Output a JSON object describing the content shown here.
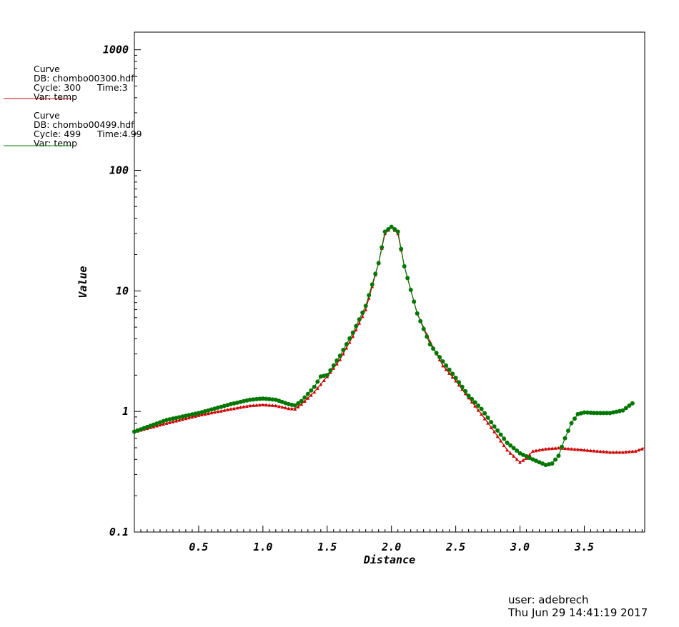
{
  "legend": [
    {
      "heading": "Curve",
      "db": "DB: chombo00300.hdf",
      "cycle": "Cycle: 300",
      "time": "Time:3",
      "var": "Var: temp",
      "color": "#cc0000"
    },
    {
      "heading": "Curve",
      "db": "DB: chombo00499.hdf",
      "cycle": "Cycle: 499",
      "time": "Time:4.99",
      "var": "Var: temp",
      "color": "#007700"
    }
  ],
  "footer": {
    "user": "user: adebrech",
    "date": "Thu Jun 29 14:41:19 2017"
  },
  "chart_data": {
    "type": "line",
    "xlabel": "Distance",
    "ylabel": "Value",
    "xlim": [
      0,
      3.97
    ],
    "ylim": [
      0.1,
      1400
    ],
    "yscale": "log",
    "x_ticks": [
      0.5,
      1.0,
      1.5,
      2.0,
      2.5,
      3.0,
      3.5
    ],
    "x_tick_labels": [
      "0.5",
      "1.0",
      "1.5",
      "2.0",
      "2.5",
      "3.0",
      "3.5"
    ],
    "y_ticks": [
      0.1,
      1,
      10,
      100,
      1000
    ],
    "y_tick_labels": [
      "0.1",
      "1",
      "10",
      "100",
      "1000"
    ],
    "grid": false,
    "series": [
      {
        "name": "chombo00300.hdf",
        "color": "#cc0000",
        "marker": "triangle",
        "x": [
          0,
          0.25,
          0.5,
          0.75,
          0.9,
          1.0,
          1.1,
          1.2,
          1.25,
          1.3,
          1.4,
          1.5,
          1.6,
          1.7,
          1.8,
          1.9,
          1.95,
          2.0,
          2.05,
          2.1,
          2.2,
          2.3,
          2.4,
          2.5,
          2.6,
          2.7,
          2.8,
          2.9,
          3.0,
          3.05,
          3.1,
          3.2,
          3.3,
          3.4,
          3.5,
          3.6,
          3.7,
          3.8,
          3.9,
          3.97
        ],
        "y": [
          0.68,
          0.8,
          0.93,
          1.05,
          1.12,
          1.14,
          1.12,
          1.06,
          1.05,
          1.15,
          1.45,
          1.95,
          2.7,
          4.2,
          7.0,
          17.0,
          30.0,
          34.0,
          30.0,
          16.0,
          6.5,
          3.8,
          2.4,
          1.8,
          1.3,
          0.95,
          0.68,
          0.48,
          0.38,
          0.41,
          0.47,
          0.49,
          0.5,
          0.49,
          0.48,
          0.47,
          0.46,
          0.46,
          0.47,
          0.5
        ]
      },
      {
        "name": "chombo00499.hdf",
        "color": "#007700",
        "marker": "circle",
        "x": [
          0,
          0.25,
          0.5,
          0.75,
          0.9,
          1.0,
          1.1,
          1.2,
          1.25,
          1.3,
          1.4,
          1.45,
          1.5,
          1.6,
          1.7,
          1.8,
          1.9,
          1.95,
          2.0,
          2.05,
          2.1,
          2.2,
          2.3,
          2.4,
          2.5,
          2.6,
          2.7,
          2.8,
          2.9,
          3.0,
          3.1,
          3.2,
          3.25,
          3.3,
          3.35,
          3.4,
          3.45,
          3.5,
          3.6,
          3.7,
          3.8,
          3.88
        ],
        "y": [
          0.68,
          0.85,
          0.97,
          1.15,
          1.25,
          1.28,
          1.25,
          1.15,
          1.12,
          1.22,
          1.6,
          1.95,
          2.0,
          2.9,
          4.5,
          7.5,
          17.0,
          31.0,
          34.0,
          31.0,
          16.0,
          6.5,
          3.6,
          2.6,
          1.9,
          1.35,
          1.05,
          0.75,
          0.55,
          0.45,
          0.4,
          0.36,
          0.37,
          0.43,
          0.6,
          0.8,
          0.95,
          0.98,
          0.97,
          0.97,
          1.02,
          1.18
        ]
      }
    ]
  }
}
